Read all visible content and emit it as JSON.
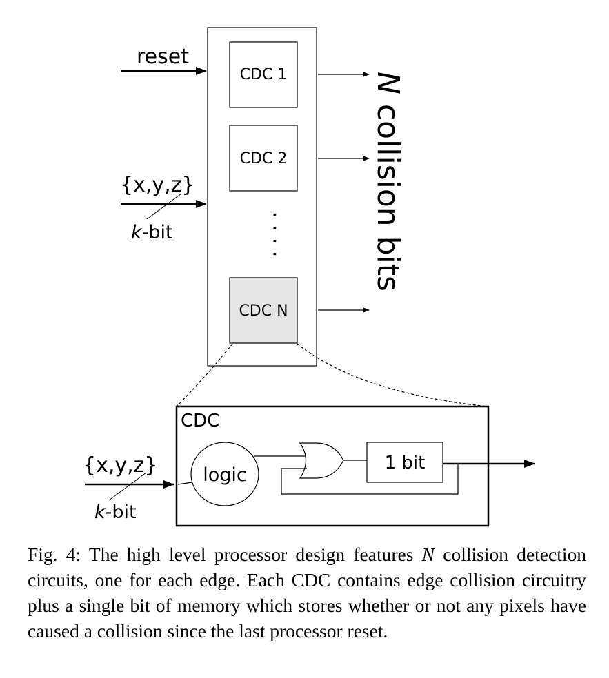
{
  "top": {
    "reset_label": "reset",
    "xyz_label": "{x,y,z}",
    "kbit_italic": "k",
    "kbit_rest": "-bit",
    "cdc_blocks": [
      "CDC 1",
      "CDC 2",
      "CDC N"
    ],
    "ellipsis": "·  ·  ·  ·",
    "output_label_italic": "N",
    "output_label_rest": " collision bits"
  },
  "detail": {
    "title": "CDC",
    "xyz_label": "{x,y,z}",
    "kbit_italic": "k",
    "kbit_rest": "-bit",
    "logic_label": "logic",
    "memory_label": "1 bit"
  },
  "colors": {
    "cdc_n_fill": "#e5e5e5",
    "stroke": "#000000"
  },
  "caption": {
    "prefix": "Fig. 4: The high level processor design features ",
    "variable": "N",
    "suffix": " collision detection circuits, one for each edge. Each CDC contains edge collision circuitry plus a single bit of memory which stores whether or not any pixels have caused a collision since the last processor reset."
  }
}
